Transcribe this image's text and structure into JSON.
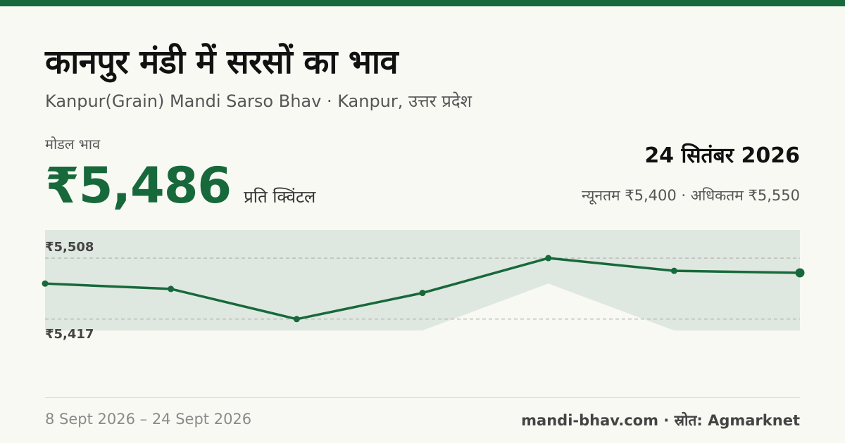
{
  "header": {
    "title": "कानपुर मंडी में सरसों का भाव",
    "subtitle": "Kanpur(Grain) Mandi Sarso Bhav · Kanpur, उत्तर प्रदेश"
  },
  "price": {
    "label": "मोडल भाव",
    "value": "₹5,486",
    "unit": "प्रति क्विंटल"
  },
  "summary": {
    "date": "24 सितंबर 2026",
    "min_max": "न्यूनतम ₹5,400 · अधिकतम ₹5,550"
  },
  "footer": {
    "date_range": "8 Sept 2026 – 24 Sept 2026",
    "source": "mandi-bhav.com · स्रोत: Agmarknet"
  },
  "colors": {
    "accent": "#17693b",
    "band": "#dfe8e0",
    "background": "#f9f9f4"
  },
  "chart_data": {
    "type": "line",
    "x": [
      "8 Sept 2026",
      "",
      "",
      "",
      "",
      "",
      "24 Sept 2026"
    ],
    "series": [
      {
        "values": [
          5470,
          5462,
          5417,
          5456,
          5508,
          5489,
          5486
        ]
      }
    ],
    "band": {
      "min": [
        5400,
        5400,
        5400,
        5400,
        5470,
        5400,
        5400
      ],
      "max": [
        5550,
        5550,
        5550,
        5550,
        5550,
        5550,
        5550
      ]
    },
    "reference_lines": [
      {
        "value": 5508,
        "label": "₹5,508"
      },
      {
        "value": 5417,
        "label": "₹5,417"
      }
    ],
    "ylim": [
      5400,
      5550
    ],
    "grid": false,
    "legend": "none"
  }
}
